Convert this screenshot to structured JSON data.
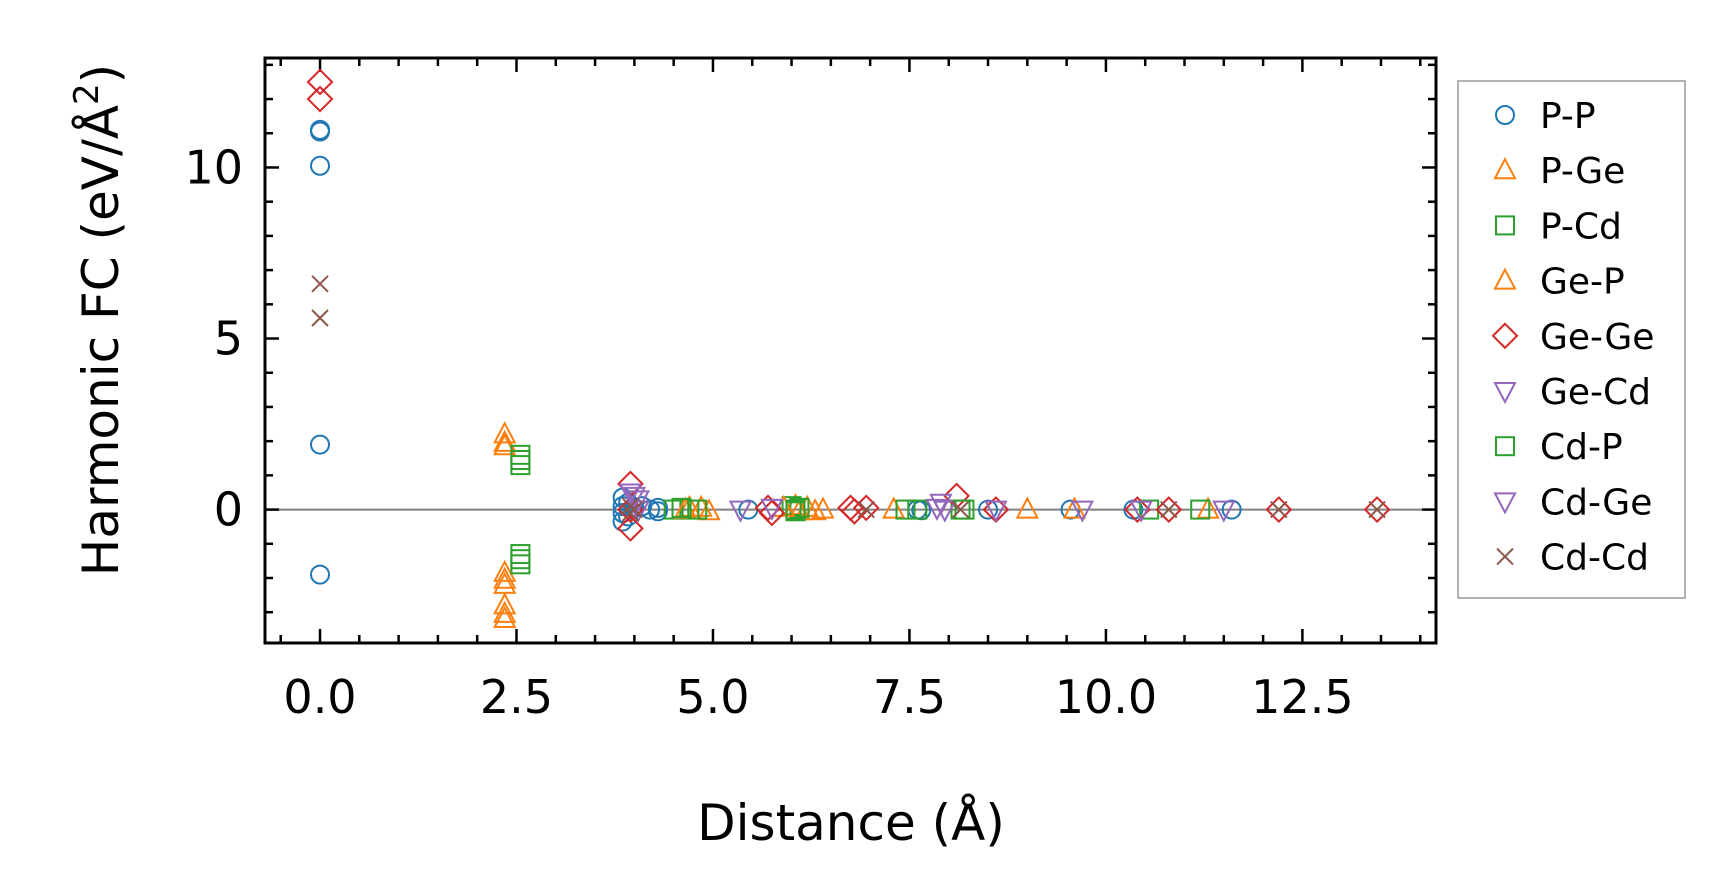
{
  "chart_data": {
    "type": "scatter",
    "xlabel": "Distance (Å)",
    "ylabel_main": "Harmonic FC (eV/Å",
    "ylabel_sup": "2",
    "ylabel_end": ")",
    "xlim": [
      -0.7,
      14.2
    ],
    "ylim": [
      -3.9,
      13.2
    ],
    "xticks": [
      0.0,
      2.5,
      5.0,
      7.5,
      10.0,
      12.5
    ],
    "xtick_labels": [
      "0.0",
      "2.5",
      "5.0",
      "7.5",
      "10.0",
      "12.5"
    ],
    "yticks": [
      0,
      5,
      10
    ],
    "ytick_labels": [
      "0",
      "5",
      "10"
    ],
    "zero_line": true,
    "legend_position": "right, outside plot",
    "series": [
      {
        "name": "P-P",
        "marker": "circle",
        "color": "#1f77b4",
        "points": [
          [
            0,
            11.1
          ],
          [
            0,
            11.05
          ],
          [
            0,
            10.05
          ],
          [
            0,
            1.9
          ],
          [
            0,
            -1.9
          ],
          [
            3.85,
            0.35
          ],
          [
            3.85,
            0.1
          ],
          [
            3.85,
            -0.1
          ],
          [
            3.85,
            -0.35
          ],
          [
            3.92,
            0.2
          ],
          [
            3.92,
            -0.2
          ],
          [
            4.0,
            0.05
          ],
          [
            4.1,
            0.1
          ],
          [
            4.2,
            0.0
          ],
          [
            4.3,
            -0.05
          ],
          [
            4.3,
            0.05
          ],
          [
            5.45,
            0.0
          ],
          [
            7.6,
            0.0
          ],
          [
            7.65,
            -0.02
          ],
          [
            8.5,
            0.0
          ],
          [
            9.55,
            0.0
          ],
          [
            10.35,
            0.0
          ],
          [
            11.6,
            0.0
          ]
        ]
      },
      {
        "name": "P-Ge",
        "marker": "triangle-up",
        "color": "#ff7f0e",
        "points": [
          [
            2.35,
            2.2
          ],
          [
            2.35,
            1.95
          ],
          [
            2.35,
            1.85
          ],
          [
            2.35,
            -1.85
          ],
          [
            2.35,
            -2.05
          ],
          [
            2.35,
            -2.2
          ],
          [
            2.35,
            -2.8
          ],
          [
            2.35,
            -3.05
          ],
          [
            2.35,
            -3.2
          ],
          [
            4.7,
            0.05
          ],
          [
            4.85,
            0.05
          ],
          [
            4.95,
            -0.05
          ],
          [
            6.05,
            0.1
          ],
          [
            6.1,
            -0.05
          ],
          [
            6.2,
            0.05
          ],
          [
            6.3,
            -0.05
          ],
          [
            7.3,
            0.0
          ],
          [
            9.0,
            0.0
          ],
          [
            11.3,
            0.0
          ]
        ]
      },
      {
        "name": "P-Cd",
        "marker": "square",
        "color": "#2ca02c",
        "points": [
          [
            2.55,
            1.6
          ],
          [
            2.55,
            1.45
          ],
          [
            2.55,
            1.3
          ],
          [
            2.55,
            -1.3
          ],
          [
            2.55,
            -1.45
          ],
          [
            2.55,
            -1.6
          ],
          [
            4.5,
            0.0
          ],
          [
            4.7,
            0.0
          ],
          [
            6.0,
            0.1
          ],
          [
            6.05,
            -0.05
          ],
          [
            6.1,
            0.05
          ],
          [
            7.45,
            0.0
          ],
          [
            8.15,
            0.0
          ],
          [
            10.55,
            0.0
          ]
        ]
      },
      {
        "name": "Ge-P",
        "marker": "triangle-up",
        "color": "#ff7f0e",
        "points": [
          [
            4.65,
            0.0
          ],
          [
            5.9,
            0.05
          ],
          [
            6.4,
            0.0
          ],
          [
            9.6,
            0.0
          ]
        ]
      },
      {
        "name": "Ge-Ge",
        "marker": "diamond",
        "color": "#d62728",
        "points": [
          [
            0,
            12.5
          ],
          [
            0,
            12.0
          ],
          [
            3.95,
            0.75
          ],
          [
            3.95,
            0.0
          ],
          [
            3.95,
            -0.55
          ],
          [
            5.7,
            0.05
          ],
          [
            5.75,
            -0.1
          ],
          [
            6.75,
            0.05
          ],
          [
            6.8,
            -0.05
          ],
          [
            6.95,
            0.05
          ],
          [
            8.1,
            0.4
          ],
          [
            8.6,
            0.0
          ],
          [
            10.4,
            0.0
          ],
          [
            10.8,
            0.0
          ],
          [
            12.2,
            0.0
          ],
          [
            13.45,
            0.0
          ]
        ]
      },
      {
        "name": "Ge-Cd",
        "marker": "triangle-down",
        "color": "#9467bd",
        "points": [
          [
            3.95,
            0.5
          ],
          [
            4.05,
            0.3
          ],
          [
            4.05,
            0.0
          ],
          [
            5.35,
            0.0
          ],
          [
            5.75,
            0.05
          ],
          [
            7.9,
            0.2
          ],
          [
            7.95,
            0.0
          ],
          [
            9.7,
            0.0
          ],
          [
            11.5,
            0.0
          ]
        ]
      },
      {
        "name": "Cd-P",
        "marker": "square",
        "color": "#2ca02c",
        "points": [
          [
            4.6,
            0.05
          ],
          [
            4.8,
            0.0
          ],
          [
            6.05,
            0.0
          ],
          [
            7.6,
            0.0
          ],
          [
            8.2,
            0.0
          ],
          [
            11.2,
            0.0
          ]
        ]
      },
      {
        "name": "Cd-Ge",
        "marker": "triangle-down",
        "color": "#9467bd",
        "points": [
          [
            4.0,
            0.4
          ],
          [
            7.85,
            0.05
          ],
          [
            8.6,
            0.0
          ],
          [
            10.45,
            0.0
          ]
        ]
      },
      {
        "name": "Cd-Cd",
        "marker": "x",
        "color": "#8c564b",
        "points": [
          [
            0,
            6.6
          ],
          [
            0,
            5.6
          ],
          [
            3.95,
            0.1
          ],
          [
            3.95,
            -0.1
          ],
          [
            4.0,
            0.0
          ],
          [
            6.95,
            0.0
          ],
          [
            8.15,
            0.0
          ],
          [
            10.8,
            0.0
          ],
          [
            12.2,
            0.0
          ],
          [
            13.45,
            0.0
          ]
        ]
      }
    ]
  }
}
